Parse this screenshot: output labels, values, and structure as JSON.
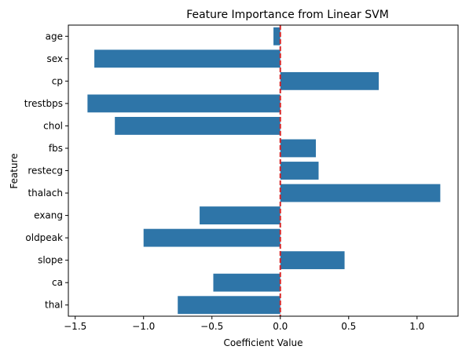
{
  "chart_data": {
    "type": "bar",
    "orientation": "horizontal",
    "title": "Feature Importance from Linear SVM",
    "xlabel": "Coefficient Value",
    "ylabel": "Feature",
    "categories": [
      "age",
      "sex",
      "cp",
      "trestbps",
      "chol",
      "fbs",
      "restecg",
      "thalach",
      "exang",
      "oldpeak",
      "slope",
      "ca",
      "thal"
    ],
    "values": [
      -0.05,
      -1.36,
      0.72,
      -1.41,
      -1.21,
      0.26,
      0.28,
      1.17,
      -0.59,
      -1.0,
      0.47,
      -0.49,
      -0.75
    ],
    "xlim": [
      -1.55,
      1.3
    ],
    "xticks": [
      -1.5,
      -1.0,
      -0.5,
      0.0,
      0.5,
      1.0
    ],
    "xtick_labels": [
      "−1.5",
      "−1.0",
      "−0.5",
      "0.0",
      "0.5",
      "1.0"
    ],
    "reference_line": {
      "x": 0,
      "style": "dashed",
      "color": "#d62728"
    },
    "bar_color": "#2e75a8",
    "grid": false,
    "legend": "none"
  }
}
